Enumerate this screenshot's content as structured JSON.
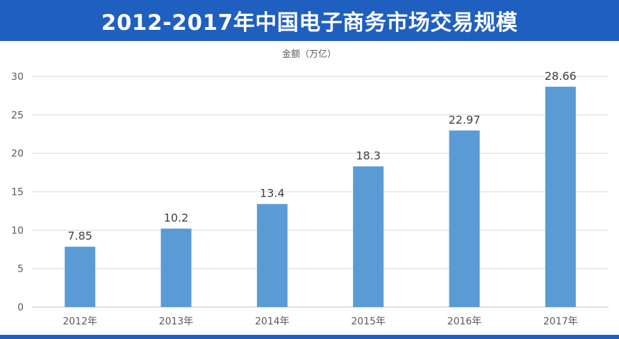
{
  "header": {
    "title": "2012-2017年中国电子商务市场交易规模"
  },
  "colors": {
    "banner": "#1f5fbf",
    "bar": "#5b9bd5",
    "grid": "#d9d9d9",
    "text": "#595959"
  },
  "chart_data": {
    "type": "bar",
    "title": "2012-2017年中国电子商务市场交易规模",
    "ylabel": "金额（万亿）",
    "xlabel": "",
    "categories": [
      "2012年",
      "2013年",
      "2014年",
      "2015年",
      "2016年",
      "2017年"
    ],
    "values": [
      7.85,
      10.2,
      13.4,
      18.3,
      22.97,
      28.66
    ],
    "value_labels": [
      "7.85",
      "10.2",
      "13.4",
      "18.3",
      "22.97",
      "28.66"
    ],
    "ylim": [
      0,
      30
    ],
    "yticks": [
      0,
      5,
      10,
      15,
      20,
      25,
      30
    ],
    "grid": true,
    "legend": "none"
  }
}
